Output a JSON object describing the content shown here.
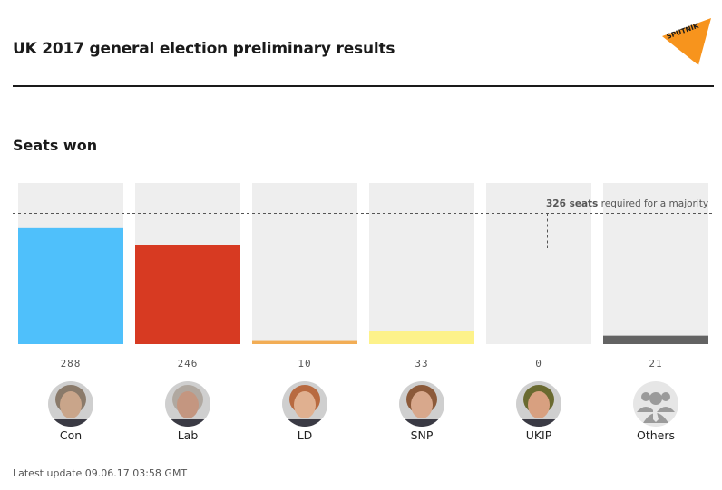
{
  "header": {
    "title": "UK 2017 general election preliminary results",
    "logo_text": "SPUTNIK",
    "logo_color": "#f7941d"
  },
  "section": {
    "title": "Seats won"
  },
  "footer": {
    "update_text": "Latest update 09.06.17 03:58 GMT"
  },
  "chart_data": {
    "type": "bar",
    "title": "Seats won",
    "categories": [
      "Con",
      "Lab",
      "LD",
      "SNP",
      "UKIP",
      "Others"
    ],
    "values": [
      288,
      246,
      10,
      33,
      0,
      21
    ],
    "colors": [
      "#4fc0fb",
      "#d73a22",
      "#f2ad55",
      "#fdf28a",
      "#bdbdbd",
      "#636363"
    ],
    "background_color": "#eeeeee",
    "ylim": [
      0,
      400
    ],
    "xlabel": "",
    "ylabel": "",
    "grid": false,
    "reference_line": {
      "value": 326,
      "label_bold": "326 seats",
      "label_rest": " required for a majority"
    }
  },
  "avatars": [
    {
      "party": "Con",
      "icon": "theresa-may-portrait",
      "tone": "#c9a58a",
      "hair": "#8a7a6a"
    },
    {
      "party": "Lab",
      "icon": "jeremy-corbyn-portrait",
      "tone": "#c49680",
      "hair": "#b0a8a0"
    },
    {
      "party": "LD",
      "icon": "tim-farron-portrait",
      "tone": "#e0b090",
      "hair": "#b86a40"
    },
    {
      "party": "SNP",
      "icon": "nicola-sturgeon-portrait",
      "tone": "#d8a88c",
      "hair": "#8c5a3a"
    },
    {
      "party": "UKIP",
      "icon": "paul-nuttall-portrait",
      "tone": "#d8a080",
      "hair": "#6a6a30"
    },
    {
      "party": "Others",
      "icon": "group-people-icon",
      "tone": "#9a9a9a",
      "hair": "#e6e6e6"
    }
  ]
}
